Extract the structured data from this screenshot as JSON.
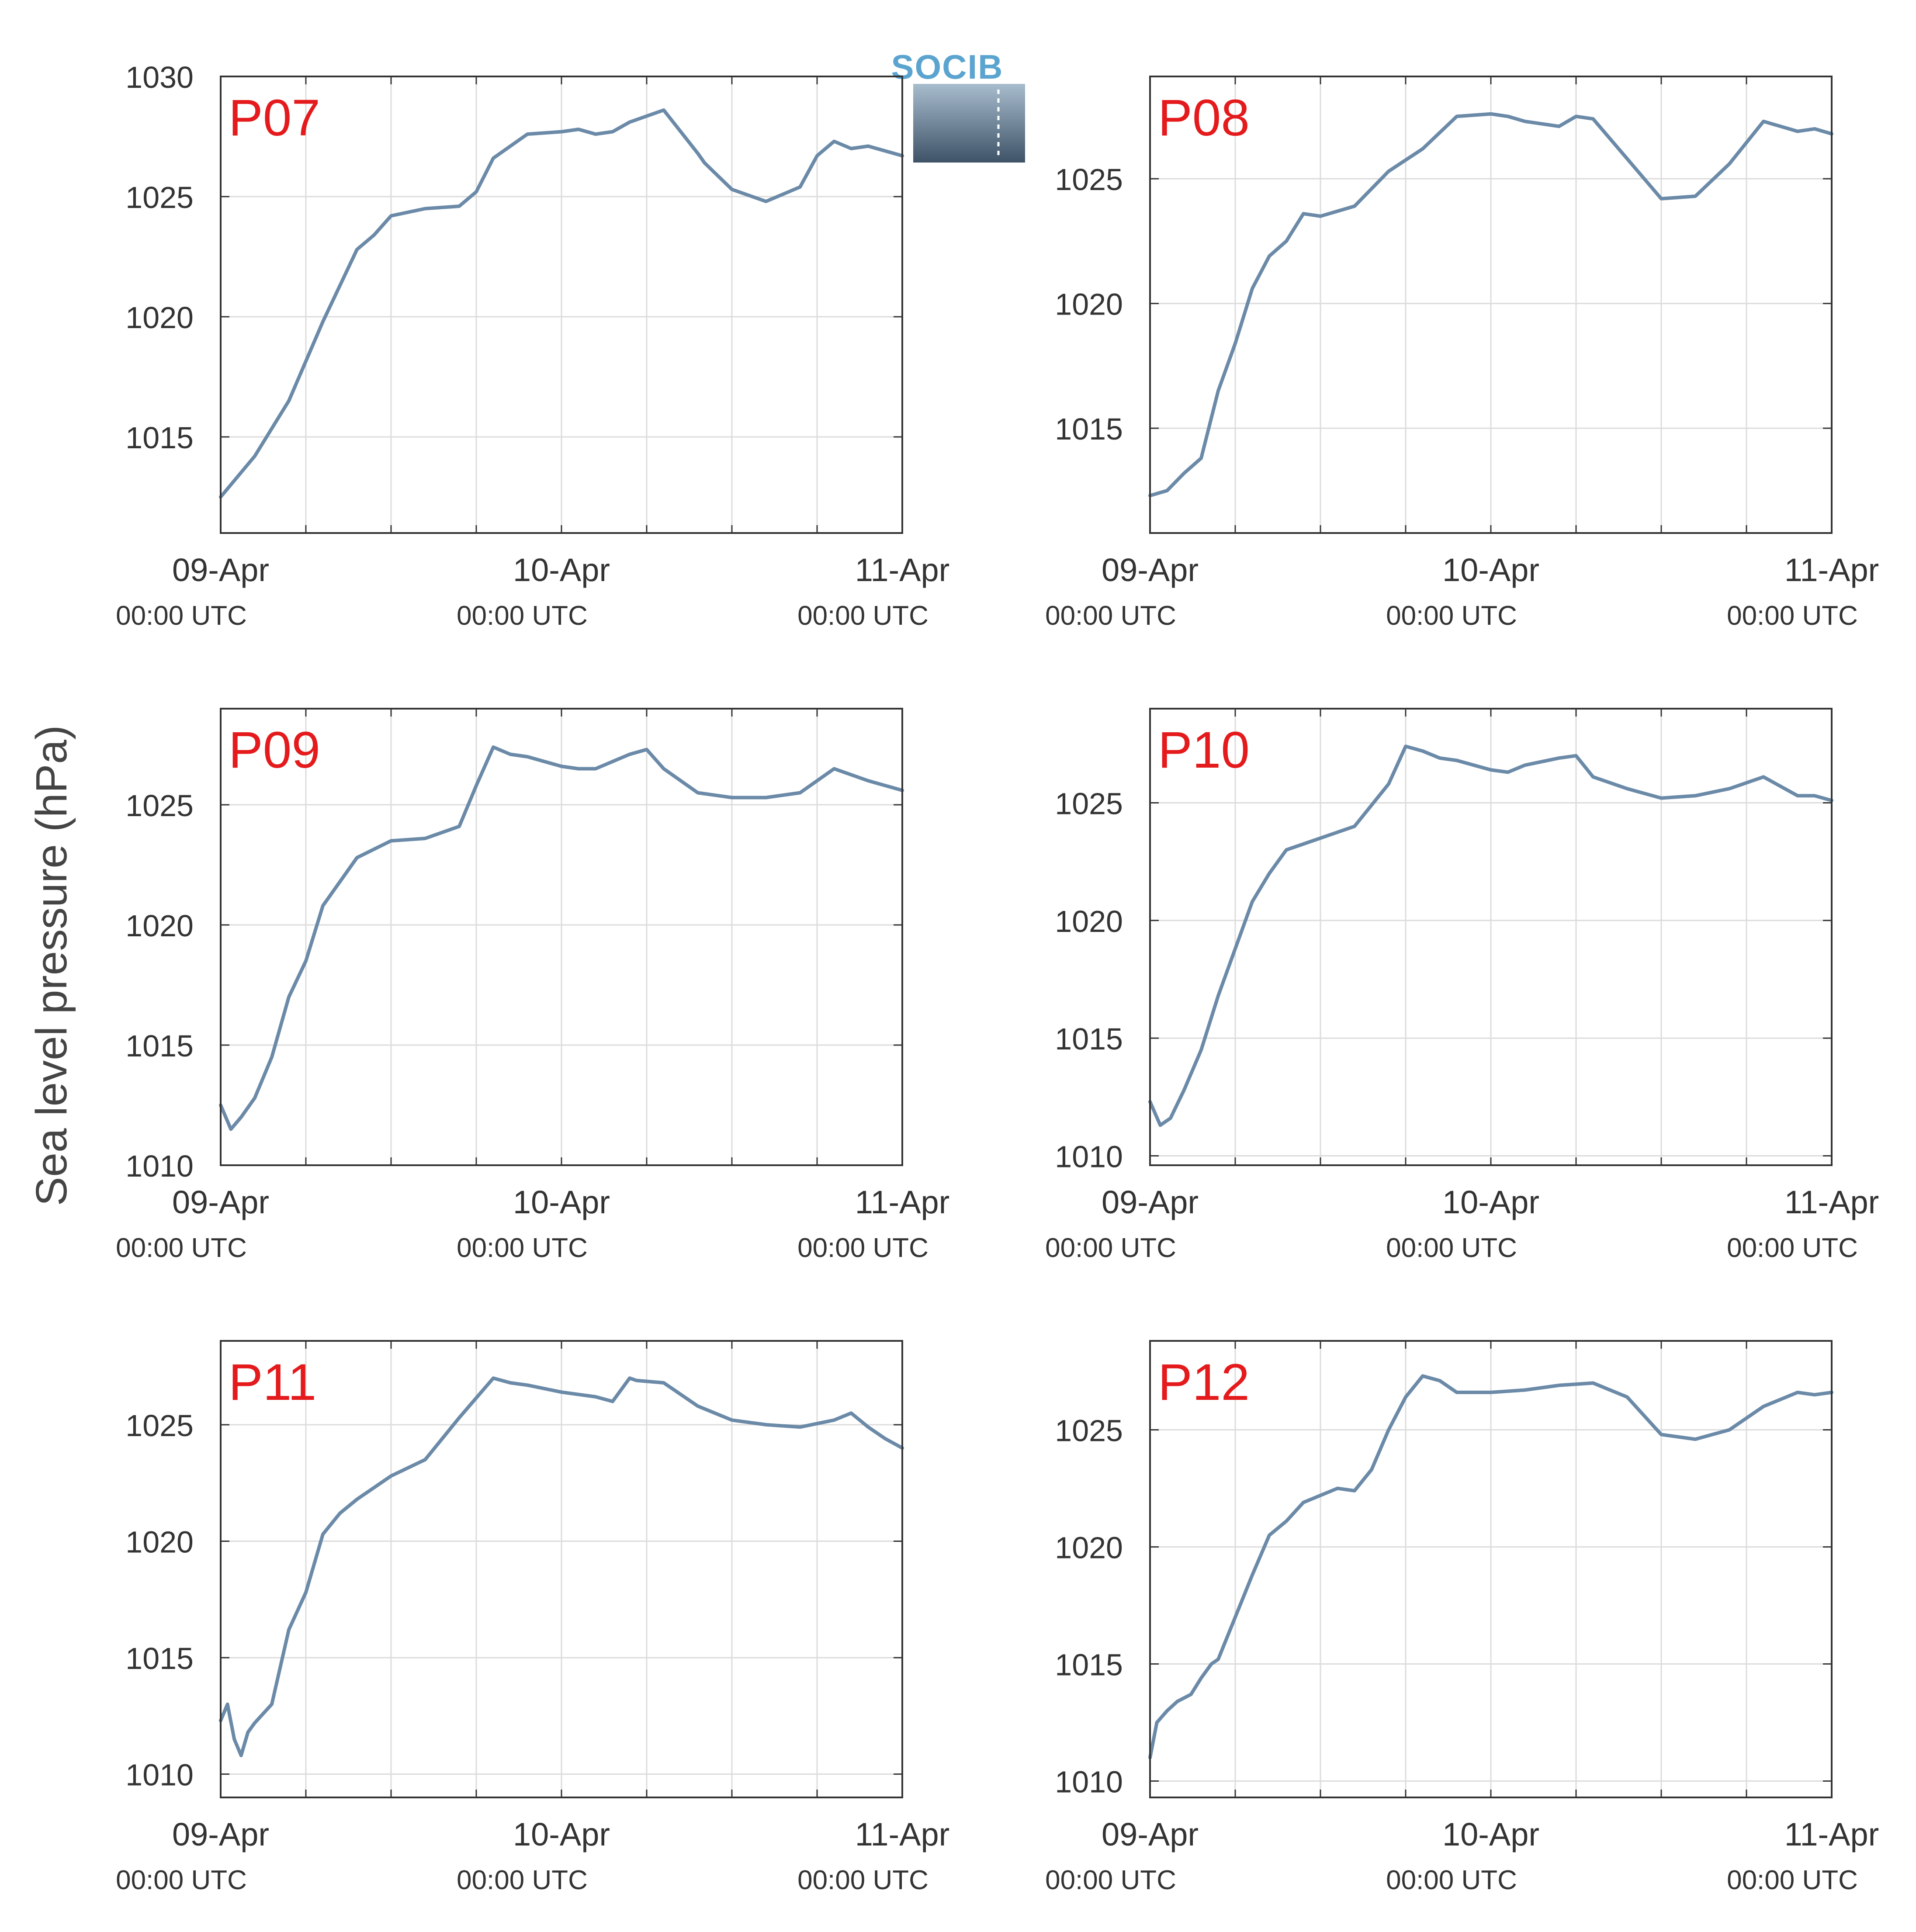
{
  "figure": {
    "ylabel": "Sea level pressure (hPa)",
    "logo_text": "SOCIB",
    "x_ticks": [
      {
        "day": 0,
        "label": "09-Apr",
        "sublabel": "00:00 UTC"
      },
      {
        "day": 1,
        "label": "10-Apr",
        "sublabel": "00:00 UTC"
      },
      {
        "day": 2,
        "label": "11-Apr",
        "sublabel": "00:00 UTC"
      }
    ],
    "x_domain_days": [
      0,
      2
    ],
    "colors": {
      "line": "#6b8aa8",
      "station_label": "#e41a1c",
      "axis": "#333333",
      "grid": "#dcdcdc",
      "text": "#333333"
    }
  },
  "chart_data": [
    {
      "type": "line",
      "station": "P07",
      "ylim": [
        1011,
        1030
      ],
      "yticks": [
        1015,
        1020,
        1025,
        1030
      ],
      "series": [
        {
          "x_days": [
            0,
            0.1,
            0.2,
            0.3,
            0.4,
            0.45,
            0.5,
            0.6,
            0.7,
            0.75,
            0.8,
            0.9,
            1.0,
            1.05,
            1.1,
            1.15,
            1.2,
            1.3,
            1.4,
            1.42,
            1.5,
            1.6,
            1.7,
            1.75,
            1.8,
            1.85,
            1.9,
            1.95,
            2.0
          ],
          "y": [
            1012.5,
            1014.2,
            1016.5,
            1019.8,
            1022.8,
            1023.4,
            1024.2,
            1024.5,
            1024.6,
            1025.2,
            1026.6,
            1027.6,
            1027.7,
            1027.8,
            1027.6,
            1027.7,
            1028.1,
            1028.6,
            1026.8,
            1026.4,
            1025.3,
            1024.8,
            1025.4,
            1026.7,
            1027.3,
            1027.0,
            1027.1,
            1026.9,
            1026.7
          ]
        }
      ]
    },
    {
      "type": "line",
      "station": "P08",
      "ylim": [
        1010.8,
        1029.1
      ],
      "yticks": [
        1015,
        1020,
        1025
      ],
      "series": [
        {
          "x_days": [
            0,
            0.05,
            0.1,
            0.15,
            0.2,
            0.25,
            0.3,
            0.35,
            0.4,
            0.45,
            0.5,
            0.6,
            0.7,
            0.8,
            0.9,
            1.0,
            1.05,
            1.1,
            1.2,
            1.25,
            1.3,
            1.4,
            1.5,
            1.6,
            1.7,
            1.8,
            1.9,
            1.95,
            2.0
          ],
          "y": [
            1012.3,
            1012.5,
            1013.2,
            1013.8,
            1016.5,
            1018.4,
            1020.6,
            1021.9,
            1022.5,
            1023.6,
            1023.5,
            1023.9,
            1025.3,
            1026.2,
            1027.5,
            1027.6,
            1027.5,
            1027.3,
            1027.1,
            1027.5,
            1027.4,
            1025.8,
            1024.2,
            1024.3,
            1025.6,
            1027.3,
            1026.9,
            1027.0,
            1026.8
          ]
        }
      ]
    },
    {
      "type": "line",
      "station": "P09",
      "ylim": [
        1010,
        1029
      ],
      "yticks": [
        1010,
        1015,
        1020,
        1025
      ],
      "series": [
        {
          "x_days": [
            0,
            0.03,
            0.06,
            0.1,
            0.15,
            0.2,
            0.25,
            0.3,
            0.35,
            0.4,
            0.5,
            0.6,
            0.7,
            0.75,
            0.8,
            0.85,
            0.9,
            1.0,
            1.05,
            1.1,
            1.2,
            1.25,
            1.3,
            1.4,
            1.5,
            1.6,
            1.7,
            1.8,
            1.9,
            2.0
          ],
          "y": [
            1012.5,
            1011.5,
            1012.0,
            1012.8,
            1014.5,
            1017.0,
            1018.5,
            1020.8,
            1021.8,
            1022.8,
            1023.5,
            1023.6,
            1024.1,
            1025.8,
            1027.4,
            1027.1,
            1027.0,
            1026.6,
            1026.5,
            1026.5,
            1027.1,
            1027.3,
            1026.5,
            1025.5,
            1025.3,
            1025.3,
            1025.5,
            1026.5,
            1026.0,
            1025.6
          ]
        }
      ]
    },
    {
      "type": "line",
      "station": "P10",
      "ylim": [
        1009.6,
        1029
      ],
      "yticks": [
        1010,
        1015,
        1020,
        1025
      ],
      "series": [
        {
          "x_days": [
            0,
            0.03,
            0.06,
            0.1,
            0.15,
            0.2,
            0.25,
            0.3,
            0.35,
            0.4,
            0.5,
            0.6,
            0.7,
            0.75,
            0.8,
            0.85,
            0.9,
            1.0,
            1.05,
            1.1,
            1.2,
            1.25,
            1.3,
            1.4,
            1.5,
            1.6,
            1.7,
            1.8,
            1.9,
            1.95,
            2.0
          ],
          "y": [
            1012.3,
            1011.3,
            1011.6,
            1012.8,
            1014.5,
            1016.8,
            1018.8,
            1020.8,
            1022.0,
            1023.0,
            1023.5,
            1024.0,
            1025.8,
            1027.4,
            1027.2,
            1026.9,
            1026.8,
            1026.4,
            1026.3,
            1026.6,
            1026.9,
            1027.0,
            1026.1,
            1025.6,
            1025.2,
            1025.3,
            1025.6,
            1026.1,
            1025.3,
            1025.3,
            1025.1
          ]
        }
      ]
    },
    {
      "type": "line",
      "station": "P11",
      "ylim": [
        1009,
        1028.6
      ],
      "yticks": [
        1010,
        1015,
        1020,
        1025
      ],
      "series": [
        {
          "x_days": [
            0,
            0.02,
            0.04,
            0.06,
            0.08,
            0.1,
            0.15,
            0.2,
            0.25,
            0.3,
            0.35,
            0.4,
            0.45,
            0.5,
            0.6,
            0.7,
            0.8,
            0.85,
            0.9,
            1.0,
            1.1,
            1.15,
            1.2,
            1.22,
            1.3,
            1.4,
            1.5,
            1.6,
            1.7,
            1.8,
            1.85,
            1.9,
            1.95,
            2.0
          ],
          "y": [
            1012.3,
            1013.0,
            1011.5,
            1010.8,
            1011.8,
            1012.2,
            1013.0,
            1016.2,
            1017.8,
            1020.3,
            1021.2,
            1021.8,
            1022.3,
            1022.8,
            1023.5,
            1025.3,
            1027.0,
            1026.8,
            1026.7,
            1026.4,
            1026.2,
            1026.0,
            1027.0,
            1026.9,
            1026.8,
            1025.8,
            1025.2,
            1025.0,
            1024.9,
            1025.2,
            1025.5,
            1024.9,
            1024.4,
            1024.0
          ]
        }
      ]
    },
    {
      "type": "line",
      "station": "P12",
      "ylim": [
        1009.3,
        1028.8
      ],
      "yticks": [
        1010,
        1015,
        1020,
        1025
      ],
      "series": [
        {
          "x_days": [
            0,
            0.02,
            0.05,
            0.08,
            0.12,
            0.15,
            0.18,
            0.2,
            0.25,
            0.3,
            0.35,
            0.4,
            0.45,
            0.5,
            0.55,
            0.6,
            0.65,
            0.7,
            0.75,
            0.8,
            0.85,
            0.9,
            1.0,
            1.1,
            1.2,
            1.3,
            1.4,
            1.5,
            1.6,
            1.7,
            1.8,
            1.9,
            1.95,
            2.0
          ],
          "y": [
            1011.0,
            1012.5,
            1013.0,
            1013.4,
            1013.7,
            1014.4,
            1015.0,
            1015.2,
            1017.0,
            1018.8,
            1020.5,
            1021.1,
            1021.9,
            1022.2,
            1022.5,
            1022.4,
            1023.3,
            1025.0,
            1026.4,
            1027.3,
            1027.1,
            1026.6,
            1026.6,
            1026.7,
            1026.9,
            1027.0,
            1026.4,
            1024.8,
            1024.6,
            1025.0,
            1026.0,
            1026.6,
            1026.5,
            1026.6
          ]
        }
      ]
    }
  ]
}
